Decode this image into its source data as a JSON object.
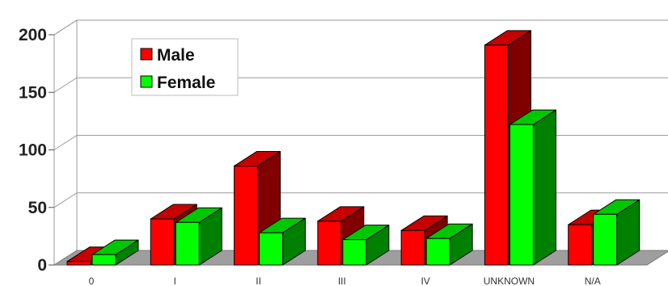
{
  "chart_data": {
    "type": "bar",
    "categories": [
      "0",
      "I",
      "II",
      "III",
      "IV",
      "UNKNOWN",
      "N/A"
    ],
    "series": [
      {
        "name": "Male",
        "values": [
          3,
          40,
          86,
          38,
          30,
          191,
          35
        ],
        "color": "#ff0000"
      },
      {
        "name": "Female",
        "values": [
          9,
          37,
          28,
          22,
          23,
          122,
          44
        ],
        "color": "#00ff00"
      }
    ],
    "yticks": [
      0,
      50,
      100,
      150,
      200
    ],
    "ylim": [
      0,
      200
    ],
    "title": "",
    "xlabel": "",
    "ylabel": "",
    "legend": "top-left",
    "grid": true,
    "style": "3d-bar"
  }
}
